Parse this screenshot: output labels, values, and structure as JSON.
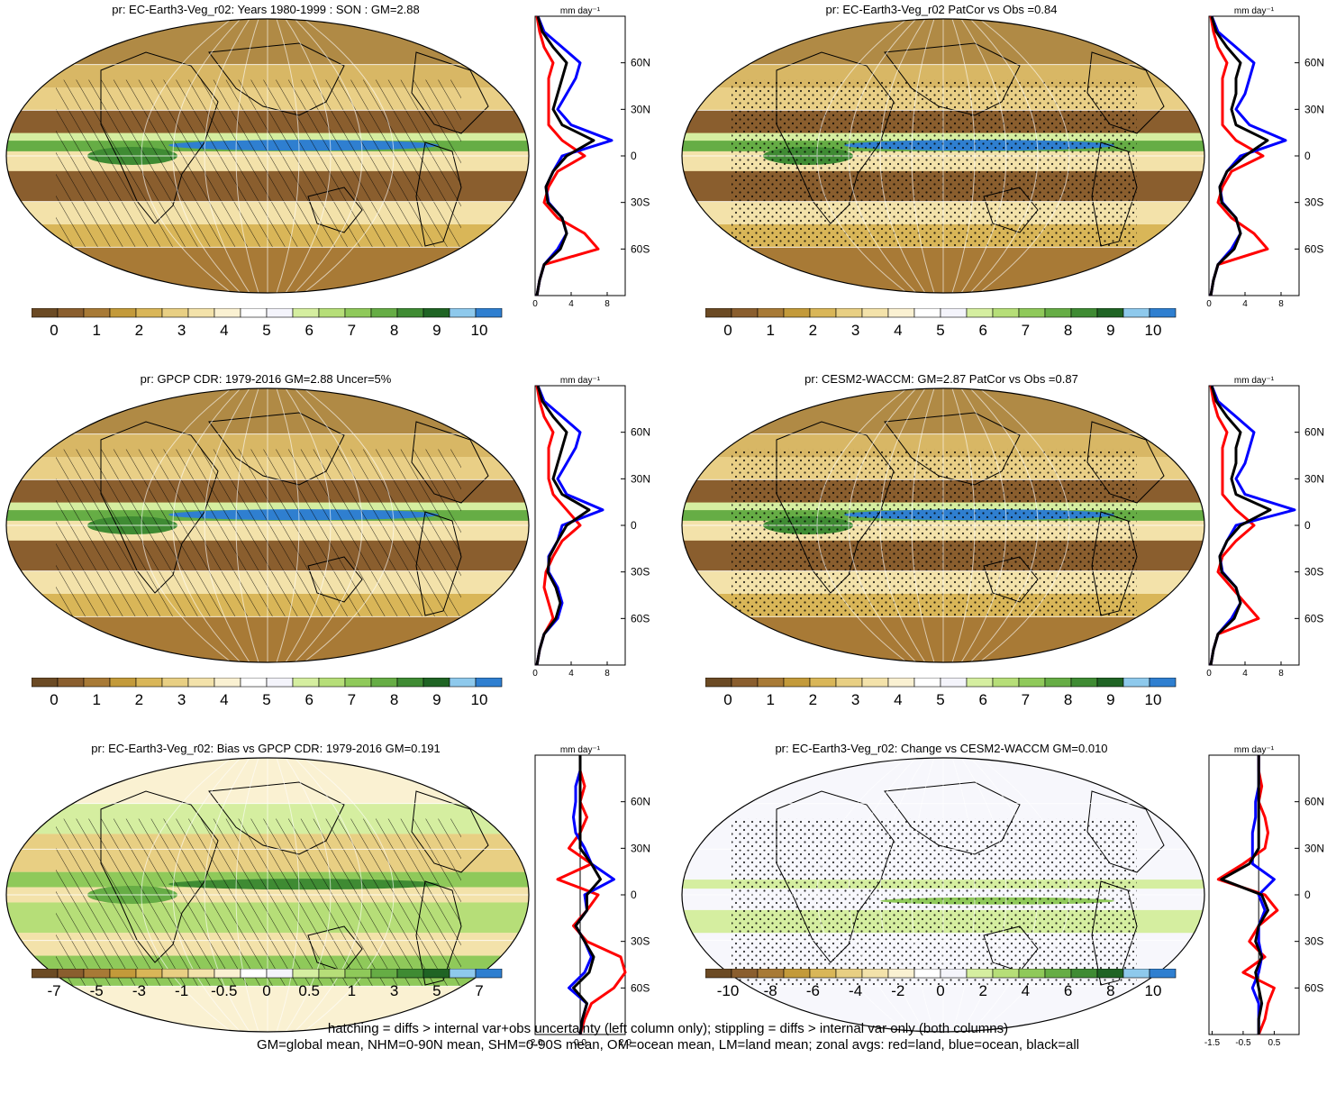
{
  "panels": [
    {
      "id": "p1",
      "title": "pr: EC-Earth3-Veg_r02: Years 1980-1999 : SON : GM=2.88",
      "pattern": "hatch",
      "palette": "abs",
      "colorbar_ticks": [
        "0",
        "1",
        "2",
        "3",
        "4",
        "5",
        "6",
        "7",
        "8",
        "9",
        "10"
      ],
      "zonal_units": "mm day⁻¹",
      "zonal_xticks": [
        "0",
        "4",
        "8"
      ],
      "lat_labels": [
        "60N",
        "30N",
        "0",
        "30S",
        "60S"
      ]
    },
    {
      "id": "p2",
      "title": "pr: EC-Earth3-Veg_r02 PatCor vs Obs =0.84",
      "pattern": "stipple",
      "palette": "abs",
      "colorbar_ticks": [
        "0",
        "1",
        "2",
        "3",
        "4",
        "5",
        "6",
        "7",
        "8",
        "9",
        "10"
      ],
      "zonal_units": "mm day⁻¹",
      "zonal_xticks": [
        "0",
        "4",
        "8"
      ],
      "lat_labels": [
        "60N",
        "30N",
        "0",
        "30S",
        "60S"
      ]
    },
    {
      "id": "p3",
      "title": "pr: GPCP CDR: 1979-2016 GM=2.88 Uncer=5%",
      "pattern": "hatch",
      "palette": "abs",
      "colorbar_ticks": [
        "0",
        "1",
        "2",
        "3",
        "4",
        "5",
        "6",
        "7",
        "8",
        "9",
        "10"
      ],
      "zonal_units": "mm day⁻¹",
      "zonal_xticks": [
        "0",
        "4",
        "8"
      ],
      "lat_labels": [
        "60N",
        "30N",
        "0",
        "30S",
        "60S"
      ]
    },
    {
      "id": "p4",
      "title": "pr: CESM2-WACCM: GM=2.87 PatCor vs Obs =0.87",
      "pattern": "stipple",
      "palette": "abs",
      "colorbar_ticks": [
        "0",
        "1",
        "2",
        "3",
        "4",
        "5",
        "6",
        "7",
        "8",
        "9",
        "10"
      ],
      "zonal_units": "mm day⁻¹",
      "zonal_xticks": [
        "0",
        "4",
        "8"
      ],
      "lat_labels": [
        "60N",
        "30N",
        "0",
        "30S",
        "60S"
      ]
    },
    {
      "id": "p5",
      "title": "pr: EC-Earth3-Veg_r02: Bias vs GPCP CDR: 1979-2016  GM=0.191",
      "pattern": "hatch",
      "palette": "diff",
      "colorbar_ticks": [
        "-7",
        "-5",
        "-3",
        "-1",
        "-0.5",
        "0",
        "0.5",
        "1",
        "3",
        "5",
        "7"
      ],
      "zonal_units": "mm day⁻¹",
      "zonal_xticks": [
        "-2.0",
        "0.0",
        "2.0"
      ],
      "lat_labels": [
        "60N",
        "30N",
        "0",
        "30S",
        "60S"
      ]
    },
    {
      "id": "p6",
      "title": "pr: EC-Earth3-Veg_r02: Change vs CESM2-WACCM GM=0.010",
      "pattern": "stipple",
      "palette": "diff2",
      "colorbar_ticks": [
        "-10",
        "-8",
        "-6",
        "-4",
        "-2",
        "0",
        "2",
        "4",
        "6",
        "8",
        "10"
      ],
      "zonal_units": "mm day⁻¹",
      "zonal_xticks": [
        "-1.5",
        "-0.5",
        "0.5"
      ],
      "lat_labels": [
        "60N",
        "30N",
        "0",
        "30S",
        "60S"
      ]
    }
  ],
  "colors": {
    "abs_palette": [
      "#6b4a24",
      "#8a5e2e",
      "#a87a36",
      "#c39a3a",
      "#d9b658",
      "#e8cf83",
      "#f3e2aa",
      "#faf1d2",
      "#ffffff",
      "#f4f4fb",
      "#d5eea0",
      "#b6de78",
      "#8fc95a",
      "#66ad45",
      "#3f8b33",
      "#1f6424",
      "#8ec9ec",
      "#2f7fd0"
    ],
    "diff_palette": [
      "#6b4a24",
      "#8a5e2e",
      "#a87a36",
      "#c39a3a",
      "#d9b658",
      "#e8cf83",
      "#f3e2aa",
      "#faf1d2",
      "#ffffff",
      "#f4f4fb",
      "#d5eea0",
      "#b6de78",
      "#8fc95a",
      "#66ad45",
      "#3f8b33",
      "#1f6424",
      "#8ec9ec",
      "#2f7fd0"
    ],
    "land_line": "#ff0000",
    "ocean_line": "#0000ff",
    "all_line": "#000000"
  },
  "chart_data": [
    {
      "type": "line",
      "panel": "p1",
      "series": [
        {
          "name": "land",
          "color": "#ff0000",
          "lat": [
            -90,
            -80,
            -70,
            -60,
            -50,
            -40,
            -30,
            -20,
            -10,
            0,
            10,
            20,
            30,
            40,
            50,
            60,
            70,
            80,
            90
          ],
          "values": [
            0.2,
            0.5,
            1.0,
            7.0,
            5.5,
            2.5,
            1.0,
            1.5,
            2.5,
            5.5,
            3.0,
            1.5,
            1.5,
            1.5,
            1.5,
            2.0,
            1.0,
            0.5,
            0.2
          ]
        },
        {
          "name": "ocean",
          "color": "#0000ff",
          "lat": [
            -90,
            -80,
            -70,
            -60,
            -50,
            -40,
            -30,
            -20,
            -10,
            0,
            10,
            20,
            30,
            40,
            50,
            60,
            70,
            80,
            90
          ],
          "values": [
            0.2,
            0.5,
            1.0,
            2.5,
            3.5,
            3.0,
            1.5,
            1.2,
            2.0,
            3.0,
            8.5,
            4.0,
            2.5,
            3.5,
            4.5,
            5.0,
            3.0,
            1.0,
            0.3
          ]
        },
        {
          "name": "all",
          "color": "#000000",
          "lat": [
            -90,
            -80,
            -70,
            -60,
            -50,
            -40,
            -30,
            -20,
            -10,
            0,
            10,
            20,
            30,
            40,
            50,
            60,
            70,
            80,
            90
          ],
          "values": [
            0.2,
            0.5,
            1.0,
            2.8,
            3.5,
            3.0,
            1.4,
            1.2,
            2.0,
            3.5,
            6.5,
            3.0,
            2.0,
            2.5,
            3.0,
            3.5,
            2.0,
            0.8,
            0.3
          ]
        }
      ],
      "xlim": [
        0,
        10
      ],
      "ylim": [
        -90,
        90
      ]
    },
    {
      "type": "line",
      "panel": "p2",
      "series": [
        {
          "name": "land",
          "color": "#ff0000",
          "lat": [
            -90,
            -80,
            -70,
            -60,
            -50,
            -40,
            -30,
            -20,
            -10,
            0,
            10,
            20,
            30,
            40,
            50,
            60,
            70,
            80,
            90
          ],
          "values": [
            0.2,
            0.5,
            1.0,
            6.5,
            5.0,
            2.5,
            1.0,
            1.5,
            2.5,
            6.0,
            3.0,
            1.5,
            1.5,
            1.5,
            1.5,
            2.0,
            1.0,
            0.5,
            0.2
          ]
        },
        {
          "name": "ocean",
          "color": "#0000ff",
          "lat": [
            -90,
            -80,
            -70,
            -60,
            -50,
            -40,
            -30,
            -20,
            -10,
            0,
            10,
            20,
            30,
            40,
            50,
            60,
            70,
            80,
            90
          ],
          "values": [
            0.2,
            0.5,
            1.0,
            2.5,
            3.5,
            3.0,
            1.5,
            1.2,
            2.0,
            3.5,
            8.5,
            4.5,
            3.0,
            4.0,
            4.5,
            5.0,
            3.0,
            1.0,
            0.3
          ]
        },
        {
          "name": "all",
          "color": "#000000",
          "lat": [
            -90,
            -80,
            -70,
            -60,
            -50,
            -40,
            -30,
            -20,
            -10,
            0,
            10,
            20,
            30,
            40,
            50,
            60,
            70,
            80,
            90
          ],
          "values": [
            0.2,
            0.5,
            1.0,
            2.8,
            3.5,
            3.0,
            1.4,
            1.2,
            2.0,
            4.0,
            6.5,
            3.0,
            2.5,
            3.0,
            3.0,
            3.5,
            2.0,
            0.8,
            0.3
          ]
        }
      ],
      "xlim": [
        0,
        10
      ],
      "ylim": [
        -90,
        90
      ]
    },
    {
      "type": "line",
      "panel": "p3",
      "series": [
        {
          "name": "land",
          "color": "#ff0000",
          "lat": [
            -90,
            -80,
            -70,
            -60,
            -50,
            -40,
            -30,
            -20,
            -10,
            0,
            10,
            20,
            30,
            40,
            50,
            60,
            70,
            80,
            90
          ],
          "values": [
            0.2,
            0.5,
            1.0,
            2.0,
            1.5,
            1.0,
            1.2,
            2.0,
            3.0,
            5.0,
            3.5,
            2.0,
            1.5,
            1.5,
            1.5,
            2.0,
            1.0,
            0.5,
            0.2
          ]
        },
        {
          "name": "ocean",
          "color": "#0000ff",
          "lat": [
            -90,
            -80,
            -70,
            -60,
            -50,
            -40,
            -30,
            -20,
            -10,
            0,
            10,
            20,
            30,
            40,
            50,
            60,
            70,
            80,
            90
          ],
          "values": [
            0.2,
            0.5,
            1.0,
            2.5,
            3.0,
            2.5,
            1.5,
            1.5,
            2.5,
            3.0,
            7.5,
            3.5,
            2.5,
            3.5,
            4.5,
            5.0,
            3.0,
            1.0,
            0.3
          ]
        },
        {
          "name": "all",
          "color": "#000000",
          "lat": [
            -90,
            -80,
            -70,
            -60,
            -50,
            -40,
            -30,
            -20,
            -10,
            0,
            10,
            20,
            30,
            40,
            50,
            60,
            70,
            80,
            90
          ],
          "values": [
            0.2,
            0.5,
            1.0,
            2.3,
            2.8,
            2.3,
            1.4,
            1.6,
            2.5,
            3.5,
            6.0,
            3.0,
            2.0,
            2.5,
            3.0,
            3.5,
            2.0,
            0.8,
            0.3
          ]
        }
      ],
      "xlim": [
        0,
        10
      ],
      "ylim": [
        -90,
        90
      ]
    },
    {
      "type": "line",
      "panel": "p4",
      "series": [
        {
          "name": "land",
          "color": "#ff0000",
          "lat": [
            -90,
            -80,
            -70,
            -60,
            -50,
            -40,
            -30,
            -20,
            -10,
            0,
            10,
            20,
            30,
            40,
            50,
            60,
            70,
            80,
            90
          ],
          "values": [
            0.2,
            0.5,
            1.0,
            5.5,
            4.0,
            2.5,
            1.0,
            1.5,
            3.0,
            5.0,
            3.0,
            1.5,
            1.5,
            1.5,
            1.5,
            2.0,
            1.0,
            0.5,
            0.2
          ]
        },
        {
          "name": "ocean",
          "color": "#0000ff",
          "lat": [
            -90,
            -80,
            -70,
            -60,
            -50,
            -40,
            -30,
            -20,
            -10,
            0,
            10,
            20,
            30,
            40,
            50,
            60,
            70,
            80,
            90
          ],
          "values": [
            0.2,
            0.5,
            1.0,
            2.5,
            3.5,
            3.0,
            1.5,
            1.2,
            2.0,
            3.0,
            9.5,
            4.0,
            3.0,
            4.0,
            4.5,
            5.0,
            3.0,
            1.0,
            0.3
          ]
        },
        {
          "name": "all",
          "color": "#000000",
          "lat": [
            -90,
            -80,
            -70,
            -60,
            -50,
            -40,
            -30,
            -20,
            -10,
            0,
            10,
            20,
            30,
            40,
            50,
            60,
            70,
            80,
            90
          ],
          "values": [
            0.2,
            0.5,
            1.0,
            2.8,
            3.5,
            3.0,
            1.4,
            1.2,
            2.0,
            3.5,
            6.8,
            3.0,
            2.5,
            3.0,
            3.0,
            3.5,
            2.0,
            0.8,
            0.3
          ]
        }
      ],
      "xlim": [
        0,
        10
      ],
      "ylim": [
        -90,
        90
      ]
    },
    {
      "type": "line",
      "panel": "p5",
      "series": [
        {
          "name": "land",
          "color": "#ff0000",
          "lat": [
            -90,
            -80,
            -70,
            -60,
            -50,
            -40,
            -30,
            -20,
            -10,
            0,
            10,
            20,
            30,
            40,
            50,
            60,
            70,
            80,
            90
          ],
          "values": [
            0.0,
            0.2,
            0.5,
            1.5,
            2.0,
            1.8,
            0.3,
            -0.3,
            0.3,
            0.8,
            -1.0,
            0.5,
            -0.5,
            0.0,
            0.3,
            0.0,
            0.2,
            0.0,
            0.0
          ]
        },
        {
          "name": "ocean",
          "color": "#0000ff",
          "lat": [
            -90,
            -80,
            -70,
            -60,
            -50,
            -40,
            -30,
            -20,
            -10,
            0,
            10,
            20,
            30,
            40,
            50,
            60,
            70,
            80,
            90
          ],
          "values": [
            0.0,
            0.1,
            0.3,
            -0.5,
            0.2,
            0.5,
            0.2,
            -0.2,
            0.3,
            0.2,
            1.5,
            0.5,
            0.2,
            -0.2,
            -0.3,
            -0.2,
            -0.2,
            0.0,
            0.0
          ]
        },
        {
          "name": "all",
          "color": "#000000",
          "lat": [
            -90,
            -80,
            -70,
            -60,
            -50,
            -40,
            -30,
            -20,
            -10,
            0,
            10,
            20,
            30,
            40,
            50,
            60,
            70,
            80,
            90
          ],
          "values": [
            0.0,
            0.1,
            0.3,
            -0.3,
            0.4,
            0.6,
            0.2,
            -0.2,
            0.3,
            0.3,
            0.9,
            0.5,
            0.0,
            0.0,
            0.0,
            0.0,
            0.0,
            0.0,
            0.0
          ]
        }
      ],
      "xlim": [
        -2,
        2
      ],
      "ylim": [
        -90,
        90
      ]
    },
    {
      "type": "line",
      "panel": "p6",
      "series": [
        {
          "name": "land",
          "color": "#ff0000",
          "lat": [
            -90,
            -80,
            -70,
            -60,
            -50,
            -40,
            -30,
            -20,
            -10,
            0,
            10,
            20,
            30,
            40,
            50,
            60,
            70,
            80,
            90
          ],
          "values": [
            0.0,
            0.2,
            0.3,
            0.5,
            -0.5,
            0.2,
            -0.3,
            0.0,
            0.6,
            0.2,
            -1.3,
            -0.5,
            0.2,
            0.3,
            0.2,
            0.0,
            0.1,
            0.0,
            0.0
          ]
        },
        {
          "name": "ocean",
          "color": "#0000ff",
          "lat": [
            -90,
            -80,
            -70,
            -60,
            -50,
            -40,
            -30,
            -20,
            -10,
            0,
            10,
            20,
            30,
            40,
            50,
            60,
            70,
            80,
            90
          ],
          "values": [
            0.0,
            0.0,
            0.0,
            -0.2,
            0.0,
            0.1,
            0.0,
            0.0,
            0.2,
            0.0,
            0.5,
            -0.2,
            -0.2,
            -0.2,
            -0.1,
            -0.1,
            0.0,
            0.0,
            0.0
          ]
        },
        {
          "name": "all",
          "color": "#000000",
          "lat": [
            -90,
            -80,
            -70,
            -60,
            -50,
            -40,
            -30,
            -20,
            -10,
            0,
            10,
            20,
            30,
            40,
            50,
            60,
            70,
            80,
            90
          ],
          "values": [
            0.0,
            0.0,
            0.1,
            0.0,
            -0.1,
            0.1,
            -0.1,
            0.0,
            0.3,
            0.1,
            -1.2,
            -0.3,
            0.0,
            0.0,
            0.0,
            0.0,
            0.0,
            0.0,
            0.0
          ]
        }
      ],
      "xlim": [
        -1.6,
        1.3
      ],
      "ylim": [
        -90,
        90
      ]
    }
  ],
  "footer": {
    "line1": "hatching = diffs > internal var+obs uncertainty (left column only); stippling = diffs > internal var only (both columns)",
    "line2": "GM=global mean, NHM=0-90N mean, SHM=0-90S mean, OM=ocean mean, LM=land mean; zonal avgs: red=land, blue=ocean, black=all"
  }
}
